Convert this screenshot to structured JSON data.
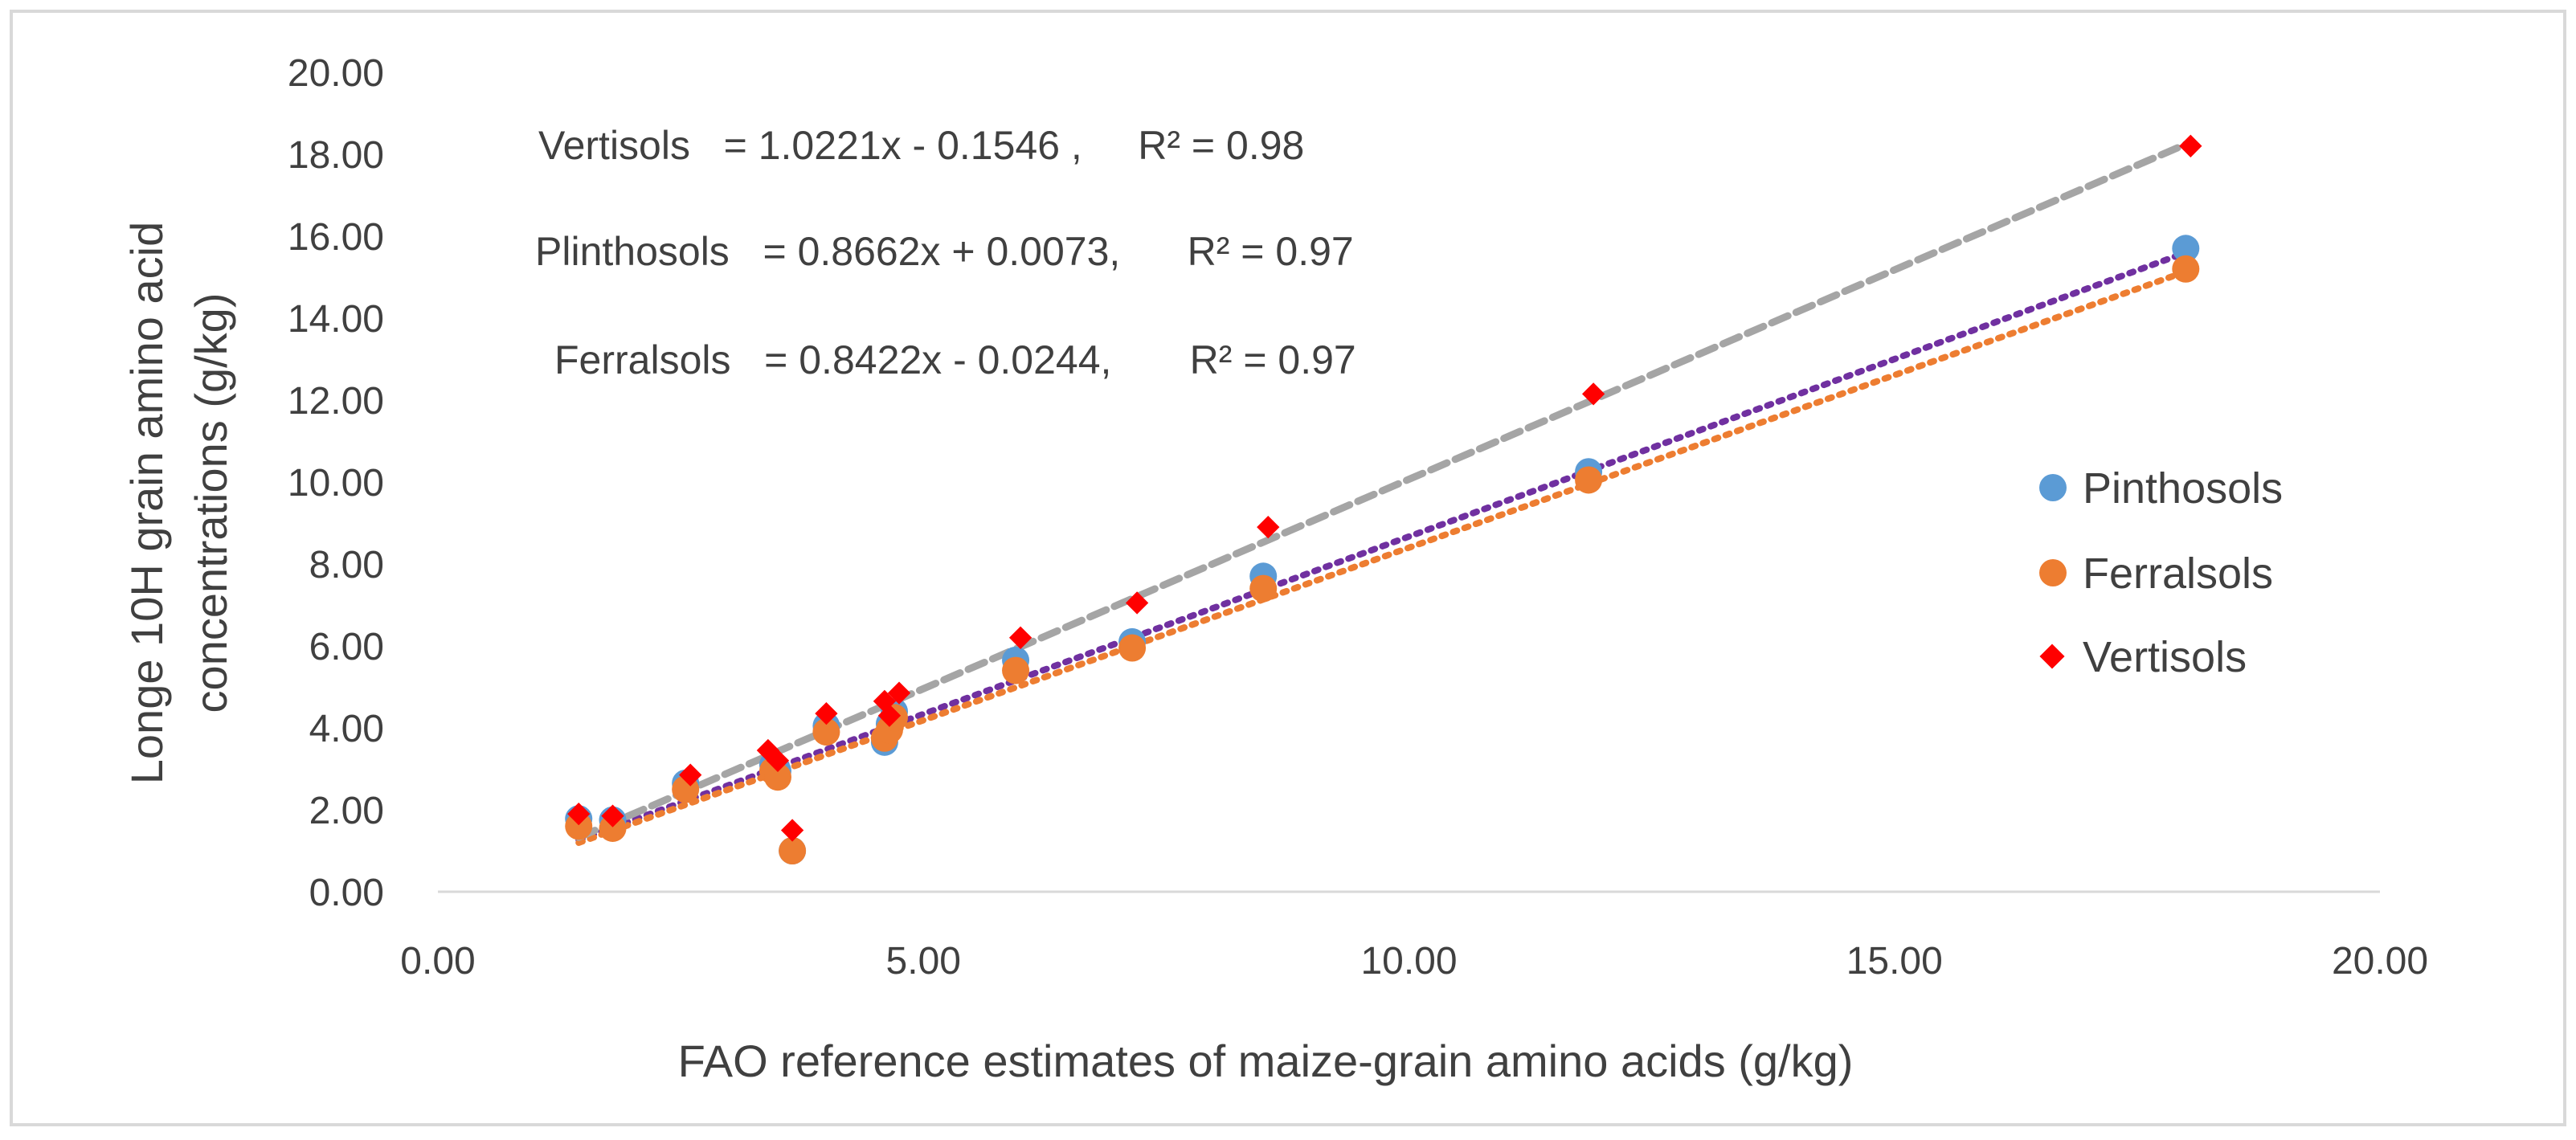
{
  "chart_data": {
    "type": "scatter",
    "xlabel": "FAO reference estimates of maize-grain amino acids (g/kg)",
    "ylabel_lines": [
      "Longe 10H grain amino acid",
      "concentrations (g/kg)"
    ],
    "xlim": [
      0,
      20
    ],
    "ylim": [
      0,
      20
    ],
    "x_ticks": [
      "0.00",
      "5.00",
      "10.00",
      "15.00",
      "20.00"
    ],
    "y_ticks": [
      "0.00",
      "2.00",
      "4.00",
      "6.00",
      "8.00",
      "10.00",
      "12.00",
      "14.00",
      "16.00",
      "18.00",
      "20.00"
    ],
    "grid": false,
    "legend_position": "right",
    "series": [
      {
        "name": "Pinthosols",
        "marker": "circle",
        "color": "#5B9BD5",
        "trend_color": "#7030A0",
        "slope": 0.8662,
        "intercept": 0.0073,
        "points": [
          [
            1.45,
            1.78
          ],
          [
            1.8,
            1.75
          ],
          [
            2.55,
            2.65
          ],
          [
            3.45,
            3.1
          ],
          [
            3.5,
            2.95
          ],
          [
            3.65,
            1.0
          ],
          [
            4.0,
            4.05
          ],
          [
            4.6,
            3.65
          ],
          [
            4.65,
            4.1
          ],
          [
            4.7,
            4.4
          ],
          [
            5.95,
            5.65
          ],
          [
            7.15,
            6.1
          ],
          [
            8.5,
            7.7
          ],
          [
            11.85,
            10.25
          ],
          [
            18.0,
            15.7
          ]
        ]
      },
      {
        "name": "Ferralsols",
        "marker": "circle",
        "color": "#ED7D31",
        "trend_color": "#ED7D31",
        "slope": 0.8422,
        "intercept": -0.0244,
        "points": [
          [
            1.45,
            1.6
          ],
          [
            1.8,
            1.55
          ],
          [
            2.55,
            2.5
          ],
          [
            3.45,
            2.95
          ],
          [
            3.5,
            2.8
          ],
          [
            3.65,
            1.0
          ],
          [
            4.0,
            3.9
          ],
          [
            4.6,
            3.75
          ],
          [
            4.65,
            3.95
          ],
          [
            4.7,
            4.25
          ],
          [
            5.95,
            5.4
          ],
          [
            7.15,
            5.95
          ],
          [
            8.5,
            7.4
          ],
          [
            11.85,
            10.05
          ],
          [
            18.0,
            15.2
          ]
        ]
      },
      {
        "name": "Vertisols",
        "marker": "diamond",
        "color": "#FF0000",
        "trend_color": "#A5A5A5",
        "slope": 1.0221,
        "intercept": -0.1546,
        "points": [
          [
            1.45,
            1.9
          ],
          [
            1.8,
            1.85
          ],
          [
            2.6,
            2.85
          ],
          [
            3.4,
            3.45
          ],
          [
            3.5,
            3.2
          ],
          [
            3.65,
            1.5
          ],
          [
            4.0,
            4.35
          ],
          [
            4.6,
            4.65
          ],
          [
            4.65,
            4.3
          ],
          [
            4.75,
            4.85
          ],
          [
            6.0,
            6.2
          ],
          [
            7.2,
            7.05
          ],
          [
            8.55,
            8.9
          ],
          [
            11.9,
            12.15
          ],
          [
            18.05,
            18.2
          ]
        ]
      }
    ],
    "annotations": [
      "Vertisols   = 1.0221x - 0.1546 ,     R² = 0.98",
      "Plinthosols   = 0.8662x + 0.0073,      R² = 0.97",
      "Ferralsols   = 0.8422x - 0.0244,       R² = 0.97"
    ]
  }
}
